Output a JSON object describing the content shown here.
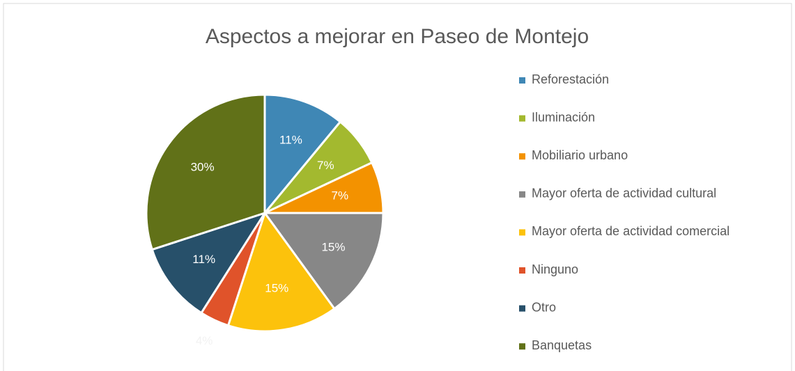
{
  "chart_data": {
    "type": "pie",
    "title": "Aspectos a mejorar en Paseo de Montejo",
    "categories": [
      "Reforestación",
      "Iluminación",
      "Mobiliario urbano",
      "Mayor oferta de actividad cultural",
      "Mayor oferta de actividad comercial",
      "Ninguno",
      "Otro",
      "Banquetas"
    ],
    "values": [
      11,
      7,
      7,
      15,
      15,
      4,
      11,
      30
    ],
    "value_labels": [
      "11%",
      "7%",
      "7%",
      "15%",
      "15%",
      "4%",
      "11%",
      "30%"
    ],
    "colors": [
      "#3f87b5",
      "#a3b92f",
      "#f39200",
      "#878787",
      "#fcc20c",
      "#e0532a",
      "#27506a",
      "#617118"
    ],
    "legend": "right"
  }
}
